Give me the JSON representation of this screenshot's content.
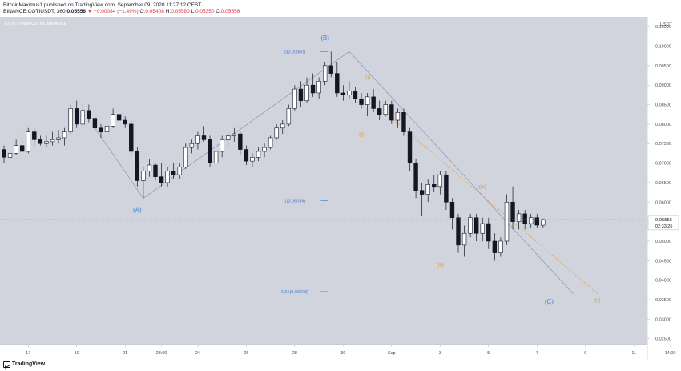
{
  "header": {
    "line1": "BitcoinMaximus1 published on TradingView.com, September 09, 2020 11:27:12 CEST",
    "symbol": "BINANCE:COTIUSDT, 360",
    "last": "0.05556",
    "change": "▼ −0.00084 (−1.49%)",
    "o_label": "O:",
    "o": "0.05408",
    "h_label": "H:",
    "h": "0.05580",
    "l_label": "L:",
    "l": "0.05350",
    "c_label": "C:",
    "c": "0.05556"
  },
  "footer": {
    "brand": "TradingView"
  },
  "colors": {
    "background": "#d1d4dc",
    "up": "#ffffff",
    "down": "#131722",
    "wave_blue": "#4a7fd0",
    "wave_orange": "#e8922e",
    "trend_line": "#8a93b8"
  },
  "chart_data": {
    "type": "candlestick",
    "title": "COTI / TetherUS, 6h, BINANCE",
    "price_label": "USDT",
    "ylim": [
      0.0235,
      0.1075
    ],
    "y_ticks": [
      0.105,
      0.1,
      0.095,
      0.09,
      0.085,
      0.08,
      0.075,
      0.07,
      0.065,
      0.06,
      0.055,
      0.05,
      0.045,
      0.04,
      0.035,
      0.03,
      0.025
    ],
    "y_tick_labels": [
      "0.10500",
      "0.10000",
      "0.09500",
      "0.09000",
      "0.08500",
      "0.08000",
      "0.07500",
      "0.07000",
      "0.06500",
      "0.06000",
      "0.05500",
      "0.05000",
      "0.04500",
      "0.04000",
      "0.03500",
      "0.03000",
      "0.02500"
    ],
    "x_ticks": [
      {
        "label": "17",
        "bar": 4
      },
      {
        "label": "19",
        "bar": 12
      },
      {
        "label": "21",
        "bar": 20
      },
      {
        "label": "23:00",
        "bar": 26
      },
      {
        "label": "24",
        "bar": 32
      },
      {
        "label": "26",
        "bar": 40
      },
      {
        "label": "28",
        "bar": 48
      },
      {
        "label": "30",
        "bar": 56
      },
      {
        "label": "Sep",
        "bar": 64
      },
      {
        "label": "3",
        "bar": 72
      },
      {
        "label": "5",
        "bar": 80
      },
      {
        "label": "7",
        "bar": 88
      },
      {
        "label": "9",
        "bar": 96
      },
      {
        "label": "11",
        "bar": 104
      },
      {
        "label": "14:00",
        "bar": 110
      }
    ],
    "last_price": {
      "value": 0.05556,
      "label": "0.05556",
      "countdown": "02:33:26"
    },
    "candles": [
      [
        0.0735,
        0.0745,
        0.07,
        0.0715
      ],
      [
        0.0715,
        0.074,
        0.07,
        0.0725
      ],
      [
        0.0725,
        0.076,
        0.072,
        0.0745
      ],
      [
        0.0745,
        0.078,
        0.0735,
        0.073
      ],
      [
        0.073,
        0.079,
        0.0725,
        0.078
      ],
      [
        0.078,
        0.079,
        0.0745,
        0.076
      ],
      [
        0.076,
        0.077,
        0.0745,
        0.075
      ],
      [
        0.075,
        0.077,
        0.074,
        0.0755
      ],
      [
        0.0755,
        0.078,
        0.0745,
        0.076
      ],
      [
        0.076,
        0.0785,
        0.075,
        0.0765
      ],
      [
        0.0765,
        0.079,
        0.0745,
        0.078
      ],
      [
        0.078,
        0.085,
        0.0775,
        0.084
      ],
      [
        0.084,
        0.086,
        0.079,
        0.08
      ],
      [
        0.08,
        0.085,
        0.0795,
        0.0835
      ],
      [
        0.0835,
        0.085,
        0.0805,
        0.0815
      ],
      [
        0.0815,
        0.083,
        0.078,
        0.079
      ],
      [
        0.079,
        0.08,
        0.0765,
        0.078
      ],
      [
        0.078,
        0.08,
        0.077,
        0.0795
      ],
      [
        0.0795,
        0.084,
        0.079,
        0.0825
      ],
      [
        0.0825,
        0.083,
        0.08,
        0.081
      ],
      [
        0.081,
        0.082,
        0.079,
        0.08
      ],
      [
        0.08,
        0.081,
        0.072,
        0.073
      ],
      [
        0.073,
        0.074,
        0.064,
        0.0655
      ],
      [
        0.0655,
        0.069,
        0.061,
        0.068
      ],
      [
        0.068,
        0.071,
        0.0665,
        0.0695
      ],
      [
        0.0695,
        0.07,
        0.0655,
        0.0665
      ],
      [
        0.0665,
        0.07,
        0.064,
        0.065
      ],
      [
        0.065,
        0.069,
        0.064,
        0.068
      ],
      [
        0.068,
        0.07,
        0.066,
        0.067
      ],
      [
        0.067,
        0.07,
        0.066,
        0.069
      ],
      [
        0.069,
        0.075,
        0.0685,
        0.074
      ],
      [
        0.074,
        0.076,
        0.0725,
        0.075
      ],
      [
        0.075,
        0.078,
        0.0735,
        0.077
      ],
      [
        0.077,
        0.0795,
        0.0755,
        0.076
      ],
      [
        0.076,
        0.077,
        0.069,
        0.07
      ],
      [
        0.07,
        0.074,
        0.0695,
        0.073
      ],
      [
        0.073,
        0.077,
        0.0715,
        0.076
      ],
      [
        0.076,
        0.078,
        0.074,
        0.077
      ],
      [
        0.077,
        0.079,
        0.0755,
        0.0775
      ],
      [
        0.0775,
        0.078,
        0.072,
        0.0735
      ],
      [
        0.0735,
        0.0745,
        0.0695,
        0.0705
      ],
      [
        0.0705,
        0.0725,
        0.069,
        0.0715
      ],
      [
        0.0715,
        0.074,
        0.0705,
        0.073
      ],
      [
        0.073,
        0.075,
        0.0715,
        0.074
      ],
      [
        0.074,
        0.077,
        0.0735,
        0.0765
      ],
      [
        0.0765,
        0.08,
        0.076,
        0.079
      ],
      [
        0.079,
        0.081,
        0.0775,
        0.08
      ],
      [
        0.08,
        0.085,
        0.0795,
        0.084
      ],
      [
        0.084,
        0.09,
        0.0835,
        0.089
      ],
      [
        0.089,
        0.091,
        0.0845,
        0.086
      ],
      [
        0.086,
        0.092,
        0.0855,
        0.09
      ],
      [
        0.09,
        0.093,
        0.087,
        0.088
      ],
      [
        0.088,
        0.092,
        0.0865,
        0.091
      ],
      [
        0.091,
        0.096,
        0.09,
        0.095
      ],
      [
        0.095,
        0.0986,
        0.092,
        0.093
      ],
      [
        0.093,
        0.096,
        0.087,
        0.088
      ],
      [
        0.088,
        0.09,
        0.086,
        0.0875
      ],
      [
        0.0875,
        0.091,
        0.0865,
        0.0885
      ],
      [
        0.0885,
        0.0895,
        0.0855,
        0.0865
      ],
      [
        0.0865,
        0.088,
        0.084,
        0.085
      ],
      [
        0.085,
        0.088,
        0.082,
        0.087
      ],
      [
        0.087,
        0.089,
        0.083,
        0.084
      ],
      [
        0.084,
        0.086,
        0.081,
        0.0825
      ],
      [
        0.0825,
        0.086,
        0.082,
        0.085
      ],
      [
        0.085,
        0.086,
        0.08,
        0.081
      ],
      [
        0.081,
        0.084,
        0.079,
        0.083
      ],
      [
        0.083,
        0.084,
        0.077,
        0.078
      ],
      [
        0.078,
        0.079,
        0.068,
        0.07
      ],
      [
        0.07,
        0.071,
        0.061,
        0.063
      ],
      [
        0.063,
        0.065,
        0.0565,
        0.062
      ],
      [
        0.062,
        0.066,
        0.06,
        0.0645
      ],
      [
        0.0645,
        0.067,
        0.0625,
        0.064
      ],
      [
        0.064,
        0.068,
        0.062,
        0.067
      ],
      [
        0.067,
        0.068,
        0.058,
        0.06
      ],
      [
        0.06,
        0.061,
        0.053,
        0.056
      ],
      [
        0.056,
        0.057,
        0.047,
        0.049
      ],
      [
        0.049,
        0.054,
        0.046,
        0.052
      ],
      [
        0.052,
        0.057,
        0.051,
        0.056
      ],
      [
        0.056,
        0.057,
        0.05,
        0.052
      ],
      [
        0.052,
        0.056,
        0.05,
        0.0545
      ],
      [
        0.0545,
        0.056,
        0.048,
        0.05
      ],
      [
        0.05,
        0.052,
        0.045,
        0.047
      ],
      [
        0.047,
        0.051,
        0.046,
        0.05
      ],
      [
        0.05,
        0.062,
        0.049,
        0.06
      ],
      [
        0.06,
        0.064,
        0.053,
        0.055
      ],
      [
        0.055,
        0.058,
        0.053,
        0.057
      ],
      [
        0.057,
        0.058,
        0.053,
        0.0545
      ],
      [
        0.0545,
        0.057,
        0.0535,
        0.056
      ],
      [
        0.056,
        0.057,
        0.0535,
        0.0541
      ],
      [
        0.05408,
        0.0558,
        0.0535,
        0.05556
      ]
    ],
    "fib_levels": [
      {
        "label": "0(0.09860)",
        "value": 0.0986
      },
      {
        "label": "1(0.06039)",
        "value": 0.06039
      },
      {
        "label": "1.61(0.03708)",
        "value": 0.03708
      }
    ],
    "wave_labels_major": [
      {
        "text": "(A)",
        "bar": 22,
        "value": 0.0575
      },
      {
        "text": "(B)",
        "bar": 53,
        "value": 0.1015
      },
      {
        "text": "(C)",
        "bar": 90,
        "value": 0.034
      }
    ],
    "wave_labels_minor": [
      {
        "text": "(i)",
        "bar": 59,
        "value": 0.077
      },
      {
        "text": "(ii)",
        "bar": 60,
        "value": 0.0915
      },
      {
        "text": "(iii)",
        "bar": 72,
        "value": 0.0435
      },
      {
        "text": "(iv)",
        "bar": 79,
        "value": 0.0635
      },
      {
        "text": "(v)",
        "bar": 90,
        "value": 0.034
      }
    ]
  }
}
